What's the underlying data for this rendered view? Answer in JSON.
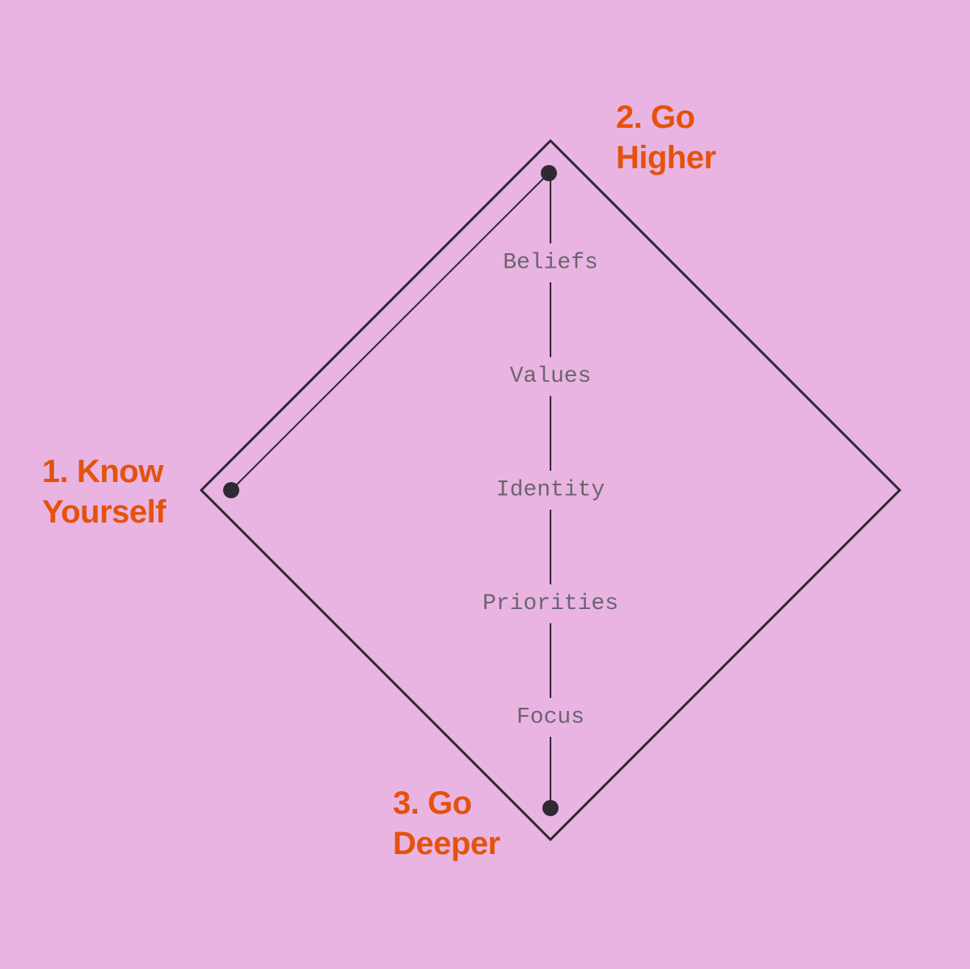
{
  "steps": {
    "know_yourself": {
      "line1": "1. Know",
      "line2": "Yourself"
    },
    "go_higher": {
      "line1": "2. Go",
      "line2": "Higher"
    },
    "go_deeper": {
      "line1": "3. Go",
      "line2": "Deeper"
    }
  },
  "levels": [
    "Beliefs",
    "Values",
    "Identity",
    "Priorities",
    "Focus"
  ],
  "colors": {
    "background": "#eab4e2",
    "accent": "#e4520c",
    "stroke": "#2f2933",
    "level_text": "#6b6470"
  }
}
